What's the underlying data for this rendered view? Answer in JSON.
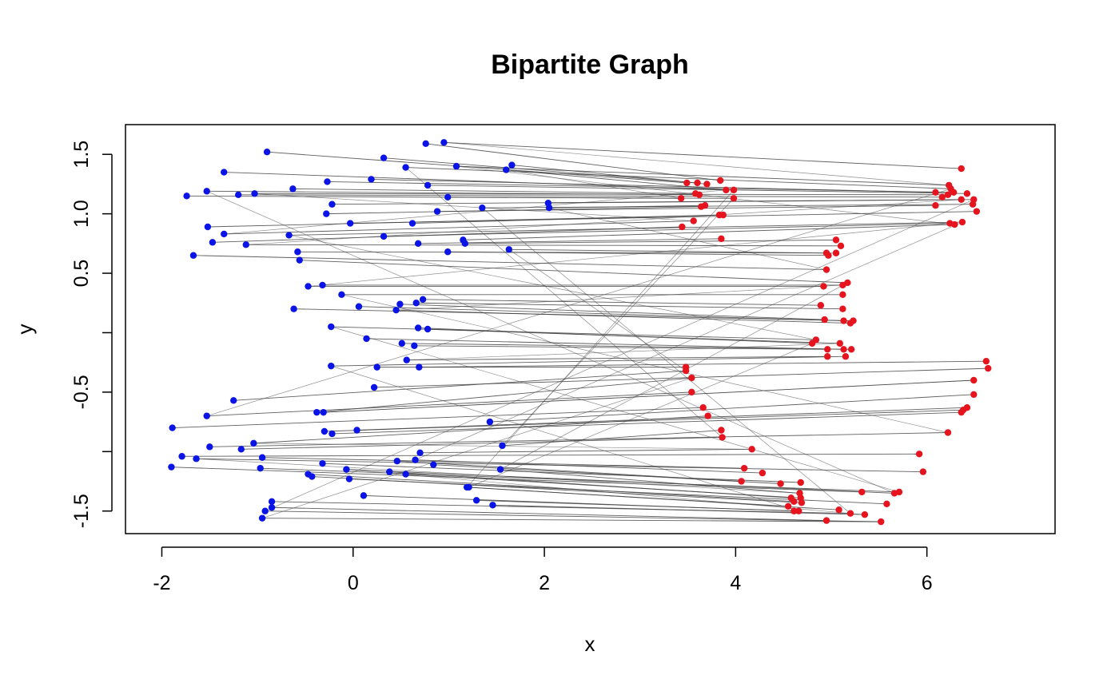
{
  "chart_data": {
    "type": "scatter",
    "title": "Bipartite Graph",
    "xlabel": "x",
    "ylabel": "y",
    "xlim": [
      -2.38,
      7.34
    ],
    "ylim": [
      -1.69,
      1.75
    ],
    "x_ticks": [
      -2,
      0,
      2,
      4,
      6
    ],
    "x_tick_labels": [
      "-2",
      "0",
      "2",
      "4",
      "6"
    ],
    "y_ticks": [
      -1.5,
      -1.0,
      -0.5,
      0.0,
      0.5,
      1.0,
      1.5
    ],
    "y_tick_labels": [
      "-1.5",
      "",
      "-0.5",
      "",
      "0.5",
      "1.0",
      "1.5"
    ],
    "grid": false,
    "legend": "none",
    "colors": {
      "left": "#0a14e6",
      "right": "#e6141e",
      "edge": "#444444",
      "frame": "#000000"
    },
    "series": [
      {
        "side": "left",
        "points": [
          [
            -0.9,
            1.52
          ],
          [
            0.32,
            1.47
          ],
          [
            0.76,
            1.59
          ],
          [
            0.95,
            1.6
          ],
          [
            1.08,
            1.4
          ],
          [
            1.66,
            1.41
          ],
          [
            1.6,
            1.37
          ],
          [
            0.55,
            1.39
          ],
          [
            -1.35,
            1.35
          ],
          [
            -0.27,
            1.27
          ],
          [
            0.19,
            1.29
          ],
          [
            0.78,
            1.24
          ],
          [
            -0.63,
            1.21
          ],
          [
            -1.53,
            1.19
          ],
          [
            -1.74,
            1.15
          ],
          [
            -1.2,
            1.16
          ],
          [
            -1.03,
            1.17
          ],
          [
            0.99,
            1.14
          ],
          [
            -0.22,
            1.08
          ],
          [
            -0.28,
            1.0
          ],
          [
            0.88,
            1.02
          ],
          [
            1.35,
            1.05
          ],
          [
            2.04,
            1.09
          ],
          [
            2.05,
            1.05
          ],
          [
            -0.03,
            0.92
          ],
          [
            0.62,
            0.92
          ],
          [
            -1.52,
            0.89
          ],
          [
            -1.35,
            0.83
          ],
          [
            -0.67,
            0.82
          ],
          [
            0.32,
            0.81
          ],
          [
            1.15,
            0.78
          ],
          [
            -1.47,
            0.76
          ],
          [
            -1.12,
            0.74
          ],
          [
            0.68,
            0.75
          ],
          [
            1.17,
            0.75
          ],
          [
            -0.58,
            0.68
          ],
          [
            0.99,
            0.68
          ],
          [
            1.63,
            0.7
          ],
          [
            -1.67,
            0.65
          ],
          [
            -0.56,
            0.61
          ],
          [
            -0.47,
            0.39
          ],
          [
            -0.32,
            0.4
          ],
          [
            -0.12,
            0.32
          ],
          [
            0.06,
            0.22
          ],
          [
            0.49,
            0.24
          ],
          [
            0.45,
            0.19
          ],
          [
            0.66,
            0.25
          ],
          [
            0.73,
            0.28
          ],
          [
            -0.62,
            0.2
          ],
          [
            -0.23,
            0.05
          ],
          [
            0.68,
            0.04
          ],
          [
            0.78,
            0.03
          ],
          [
            0.14,
            -0.05
          ],
          [
            0.51,
            -0.09
          ],
          [
            0.64,
            -0.11
          ],
          [
            0.56,
            -0.23
          ],
          [
            0.69,
            -0.29
          ],
          [
            -0.23,
            -0.28
          ],
          [
            0.25,
            -0.29
          ],
          [
            0.22,
            -0.46
          ],
          [
            -1.25,
            -0.57
          ],
          [
            -1.53,
            -0.7
          ],
          [
            -0.38,
            -0.67
          ],
          [
            -0.31,
            -0.67
          ],
          [
            1.43,
            -0.75
          ],
          [
            -1.89,
            -0.8
          ],
          [
            -0.3,
            -0.83
          ],
          [
            -0.22,
            -0.85
          ],
          [
            0.04,
            -0.82
          ],
          [
            1.56,
            -0.95
          ],
          [
            -1.04,
            -0.93
          ],
          [
            -1.17,
            -0.98
          ],
          [
            -1.5,
            -0.96
          ],
          [
            0.7,
            -1.01
          ],
          [
            -0.95,
            -1.05
          ],
          [
            -1.79,
            -1.04
          ],
          [
            -1.64,
            -1.06
          ],
          [
            -0.32,
            -1.1
          ],
          [
            0.46,
            -1.08
          ],
          [
            0.65,
            -1.07
          ],
          [
            0.84,
            -1.11
          ],
          [
            -1.9,
            -1.13
          ],
          [
            -0.97,
            -1.14
          ],
          [
            -0.07,
            -1.15
          ],
          [
            0.38,
            -1.17
          ],
          [
            0.55,
            -1.19
          ],
          [
            1.54,
            -1.15
          ],
          [
            -0.47,
            -1.19
          ],
          [
            -0.43,
            -1.21
          ],
          [
            -0.04,
            -1.23
          ],
          [
            1.19,
            -1.3
          ],
          [
            1.21,
            -1.3
          ],
          [
            0.11,
            -1.37
          ],
          [
            1.29,
            -1.41
          ],
          [
            1.46,
            -1.45
          ],
          [
            -0.85,
            -1.42
          ],
          [
            -0.85,
            -1.47
          ],
          [
            -0.92,
            -1.5
          ],
          [
            -0.95,
            -1.56
          ]
        ]
      },
      {
        "side": "right",
        "points": [
          [
            6.36,
            1.38
          ],
          [
            3.84,
            1.28
          ],
          [
            3.49,
            1.26
          ],
          [
            3.6,
            1.26
          ],
          [
            3.7,
            1.25
          ],
          [
            6.23,
            1.24
          ],
          [
            6.25,
            1.21
          ],
          [
            3.9,
            1.2
          ],
          [
            3.98,
            1.2
          ],
          [
            6.09,
            1.18
          ],
          [
            6.42,
            1.17
          ],
          [
            3.58,
            1.17
          ],
          [
            3.62,
            1.16
          ],
          [
            6.16,
            1.14
          ],
          [
            6.22,
            1.16
          ],
          [
            6.28,
            1.18
          ],
          [
            3.43,
            1.13
          ],
          [
            3.98,
            1.13
          ],
          [
            6.36,
            1.12
          ],
          [
            6.49,
            1.12
          ],
          [
            6.48,
            1.08
          ],
          [
            3.68,
            1.07
          ],
          [
            3.64,
            1.06
          ],
          [
            6.09,
            1.07
          ],
          [
            6.52,
            1.02
          ],
          [
            3.83,
            0.99
          ],
          [
            3.87,
            0.99
          ],
          [
            3.56,
            0.94
          ],
          [
            6.37,
            0.93
          ],
          [
            6.24,
            0.92
          ],
          [
            6.29,
            0.91
          ],
          [
            3.44,
            0.89
          ],
          [
            3.85,
            0.79
          ],
          [
            5.05,
            0.78
          ],
          [
            5.1,
            0.73
          ],
          [
            4.95,
            0.67
          ],
          [
            4.97,
            0.65
          ],
          [
            5.05,
            0.67
          ],
          [
            4.95,
            0.53
          ],
          [
            5.17,
            0.42
          ],
          [
            5.12,
            0.4
          ],
          [
            4.92,
            0.39
          ],
          [
            5.12,
            0.32
          ],
          [
            4.89,
            0.23
          ],
          [
            5.12,
            0.2
          ],
          [
            4.93,
            0.11
          ],
          [
            5.13,
            0.1
          ],
          [
            5.23,
            0.1
          ],
          [
            5.2,
            0.08
          ],
          [
            4.8,
            -0.09
          ],
          [
            4.84,
            -0.06
          ],
          [
            5.09,
            -0.09
          ],
          [
            5.13,
            -0.14
          ],
          [
            5.21,
            -0.14
          ],
          [
            4.96,
            -0.14
          ],
          [
            4.96,
            -0.2
          ],
          [
            5.15,
            -0.2
          ],
          [
            6.62,
            -0.24
          ],
          [
            6.64,
            -0.3
          ],
          [
            3.48,
            -0.29
          ],
          [
            3.48,
            -0.32
          ],
          [
            3.54,
            -0.38
          ],
          [
            6.49,
            -0.4
          ],
          [
            3.54,
            -0.5
          ],
          [
            6.49,
            -0.52
          ],
          [
            3.66,
            -0.63
          ],
          [
            6.42,
            -0.63
          ],
          [
            6.38,
            -0.65
          ],
          [
            3.71,
            -0.7
          ],
          [
            6.36,
            -0.67
          ],
          [
            3.85,
            -0.82
          ],
          [
            3.86,
            -0.88
          ],
          [
            6.22,
            -0.84
          ],
          [
            4.17,
            -0.98
          ],
          [
            5.92,
            -1.02
          ],
          [
            4.09,
            -1.14
          ],
          [
            5.96,
            -1.17
          ],
          [
            4.28,
            -1.18
          ],
          [
            4.47,
            -1.27
          ],
          [
            4.68,
            -1.26
          ],
          [
            4.06,
            -1.25
          ],
          [
            5.32,
            -1.34
          ],
          [
            5.71,
            -1.34
          ],
          [
            5.66,
            -1.35
          ],
          [
            4.67,
            -1.35
          ],
          [
            4.58,
            -1.39
          ],
          [
            4.68,
            -1.39
          ],
          [
            4.61,
            -1.42
          ],
          [
            4.69,
            -1.43
          ],
          [
            4.55,
            -1.46
          ],
          [
            5.58,
            -1.44
          ],
          [
            4.61,
            -1.5
          ],
          [
            4.66,
            -1.5
          ],
          [
            5.08,
            -1.49
          ],
          [
            5.2,
            -1.52
          ],
          [
            5.35,
            -1.53
          ],
          [
            4.95,
            -1.58
          ],
          [
            5.52,
            -1.59
          ]
        ]
      }
    ]
  }
}
